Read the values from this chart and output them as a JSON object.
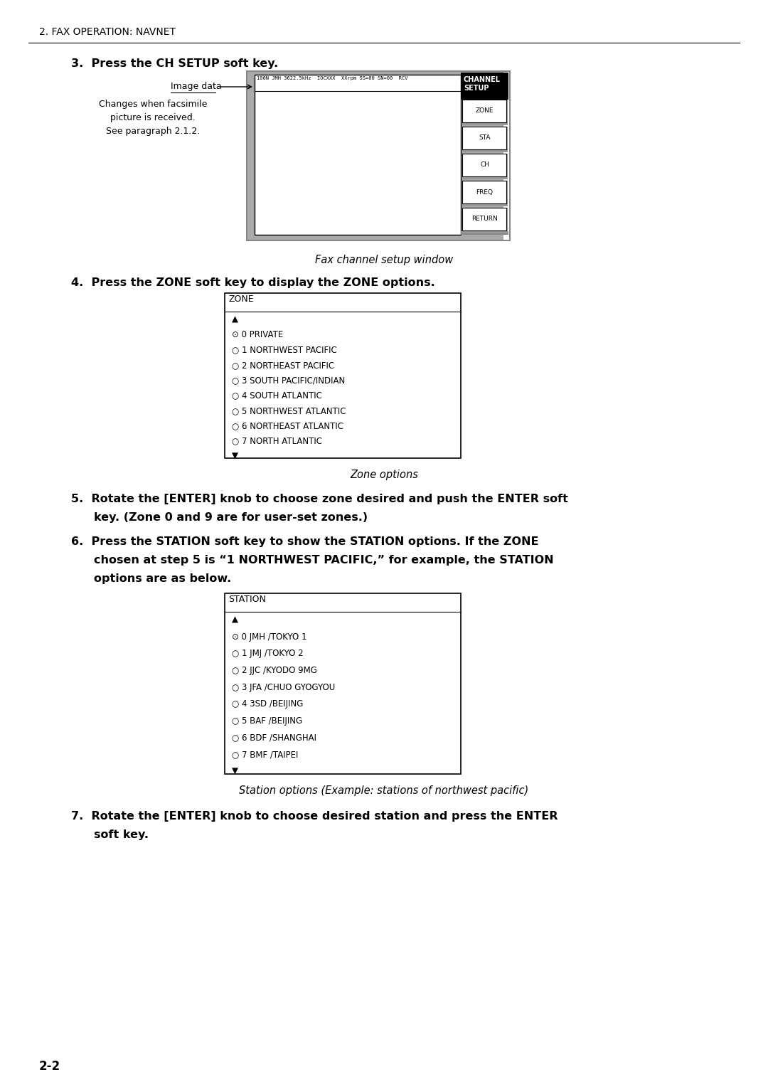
{
  "bg_color": "#ffffff",
  "page_width": 10.8,
  "page_height": 15.28,
  "header": "2. FAX OPERATION: NAVNET",
  "step3_text": "3.  Press the CH SETUP soft key.",
  "image_data_label": "Image data",
  "image_data_note": "Changes when facsimile\npicture is received.\nSee paragraph 2.1.2.",
  "status_bar_text": "100N JMH 3622.5kHz  IOCXXX  XXrpm SS=00 SN=00  RCV",
  "caption1": "Fax channel setup window",
  "step4_text": "4.  Press the ZONE soft key to display the ZONE options.",
  "zone_title": "ZONE",
  "zone_items": [
    "▲",
    "⊙ 0 PRIVATE",
    "○ 1 NORTHWEST PACIFIC",
    "○ 2 NORTHEAST PACIFIC",
    "○ 3 SOUTH PACIFIC/INDIAN",
    "○ 4 SOUTH ATLANTIC",
    "○ 5 NORTHWEST ATLANTIC",
    "○ 6 NORTHEAST ATLANTIC",
    "○ 7 NORTH ATLANTIC",
    "▼"
  ],
  "caption2": "Zone options",
  "step5_line1": "5.  Rotate the [ENTER] knob to choose zone desired and push the ENTER soft",
  "step5_line2": "    key. (Zone 0 and 9 are for user-set zones.)",
  "step6_line1": "6.  Press the STATION soft key to show the STATION options. If the ZONE",
  "step6_line2": "    chosen at step 5 is “1 NORTHWEST PACIFIC,” for example, the STATION",
  "step6_line3": "    options are as below.",
  "station_title": "STATION",
  "station_items": [
    "▲",
    "⊙ 0 JMH /TOKYO 1",
    "○ 1 JMJ /TOKYO 2",
    "○ 2 JJC /KYODO 9MG",
    "○ 3 JFA /CHUO GYOGYOU",
    "○ 4 3SD /BEIJING",
    "○ 5 BAF /BEIJING",
    "○ 6 BDF /SHANGHAI",
    "○ 7 BMF /TAIPEI",
    "▼"
  ],
  "caption3": "Station options (Example: stations of northwest pacific)",
  "step7_line1": "7.  Rotate the [ENTER] knob to choose desired station and press the ENTER",
  "step7_line2": "    soft key.",
  "footer": "2-2"
}
